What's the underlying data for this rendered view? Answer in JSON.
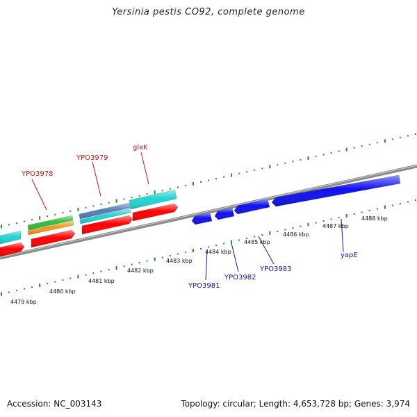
{
  "title": "Yersinia pestis CO92, complete genome",
  "footer": {
    "accession": "Accession: NC_003143",
    "stats": "Topology: circular; Length: 4,653,728 bp; Genes: 3,974"
  },
  "colors": {
    "backbone": "#8a8a8a",
    "tick": "#1f8f1f",
    "forward_label": "#cc1111",
    "reverse_label": "#1111bb",
    "red": "#ff0000",
    "cyan": "#22d4d4",
    "green": "#33c033",
    "orange": "#f29a1a",
    "steel": "#4f80b8",
    "blue": "#1010ee"
  },
  "scale_labels": [
    "4479 kbp",
    "4480 kbp",
    "4481 kbp",
    "4482 kbp",
    "4483 kbp",
    "4484 kbp",
    "4485 kbp",
    "4486 kbp",
    "4487 kbp",
    "4488 kbp"
  ],
  "gene_labels": [
    {
      "name": "YPO3978",
      "strand": "forward"
    },
    {
      "name": "YPO3979",
      "strand": "forward"
    },
    {
      "name": "glxK",
      "strand": "forward"
    },
    {
      "name": "YPO3981",
      "strand": "reverse"
    },
    {
      "name": "YPO3982",
      "strand": "reverse"
    },
    {
      "name": "YPO3983",
      "strand": "reverse"
    },
    {
      "name": "yapE",
      "strand": "reverse"
    }
  ]
}
